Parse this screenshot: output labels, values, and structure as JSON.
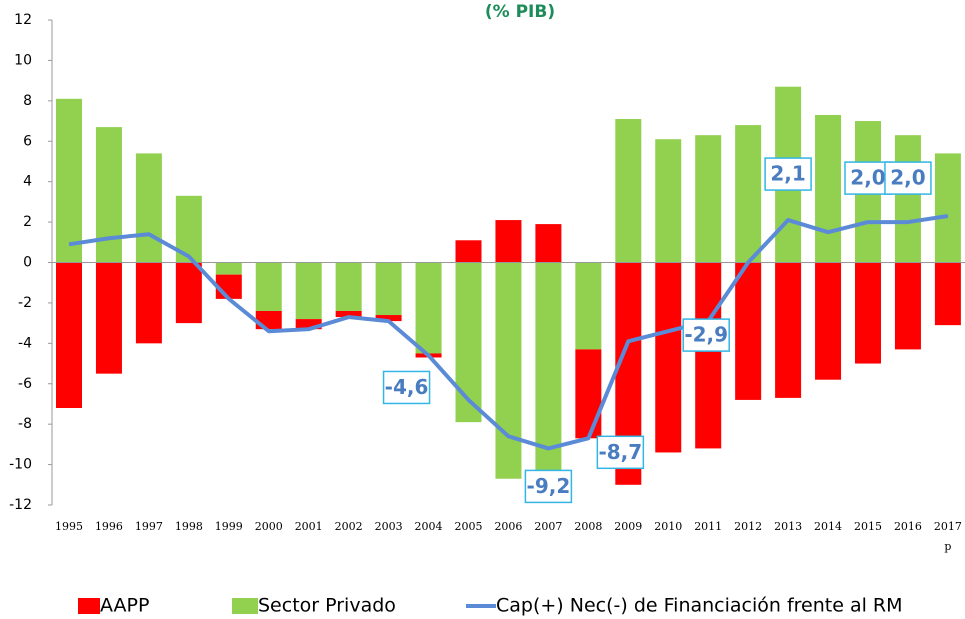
{
  "chart_data": {
    "type": "combo",
    "title": "(% PIB)",
    "categories": [
      "1995",
      "1996",
      "1997",
      "1998",
      "1999",
      "2000",
      "2001",
      "2002",
      "2003",
      "2004",
      "2005",
      "2006",
      "2007",
      "2008",
      "2009",
      "2010",
      "2011",
      "2012",
      "2013",
      "2014",
      "2015",
      "2016",
      "2017"
    ],
    "category_note": "p",
    "series": [
      {
        "name": "AAPP",
        "type": "bar",
        "color": "#ff0000",
        "values": [
          -7.2,
          -5.5,
          -4.0,
          -3.0,
          -1.2,
          -0.9,
          -0.5,
          -0.3,
          -0.3,
          -0.2,
          1.1,
          2.1,
          1.9,
          -4.4,
          -11.0,
          -9.4,
          -9.2,
          -6.8,
          -6.7,
          -5.8,
          -5.0,
          -4.3,
          -3.1
        ]
      },
      {
        "name": "Sector Privado",
        "type": "bar",
        "color": "#92d050",
        "values": [
          8.1,
          6.7,
          5.4,
          3.3,
          -0.6,
          -2.4,
          -2.8,
          -2.4,
          -2.6,
          -4.5,
          -7.9,
          -10.7,
          -11.1,
          -4.3,
          7.1,
          6.1,
          6.3,
          6.8,
          8.7,
          7.3,
          7.0,
          6.3,
          5.4
        ]
      },
      {
        "name": "Cap(+) Nec(-) de Financiación frente al RM",
        "type": "line",
        "color": "#5b8bd6",
        "values": [
          0.9,
          1.2,
          1.4,
          0.3,
          -1.8,
          -3.4,
          -3.3,
          -2.7,
          -2.9,
          -4.6,
          -6.8,
          -8.6,
          -9.2,
          -8.7,
          -3.9,
          -3.4,
          -2.9,
          0.0,
          2.1,
          1.5,
          2.0,
          2.0,
          2.3
        ],
        "value_labels": [
          null,
          null,
          null,
          null,
          null,
          null,
          null,
          null,
          null,
          "-4,6",
          null,
          null,
          "-9,2",
          "-8,7",
          null,
          null,
          "-2,9",
          null,
          "2,1",
          null,
          "2,0",
          "2,0",
          null
        ]
      }
    ],
    "ylim": [
      -12,
      12
    ],
    "yticks": [
      -12,
      -10,
      -8,
      -6,
      -4,
      -2,
      0,
      2,
      4,
      6,
      8,
      10,
      12
    ],
    "grid": false,
    "legend": "bottom"
  }
}
